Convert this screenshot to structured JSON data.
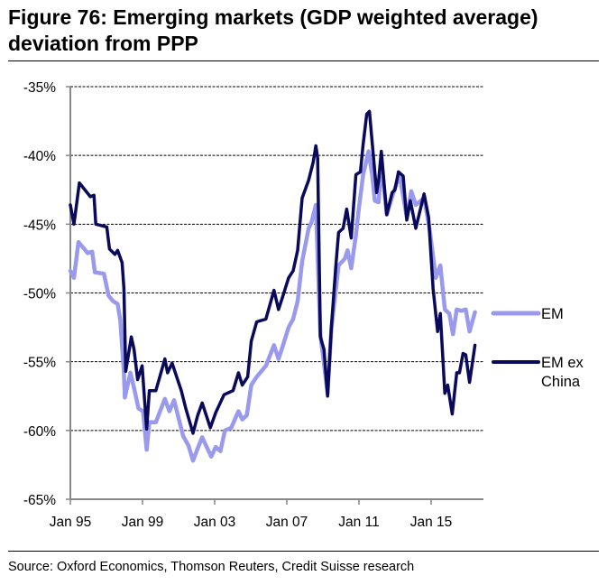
{
  "title": "Figure 76: Emerging markets (GDP weighted average) deviation from PPP",
  "source": "Source: Oxford Economics, Thomson Reuters, Credit Suisse research",
  "chart_data": {
    "type": "line",
    "title": "Figure 76: Emerging markets (GDP weighted average) deviation from PPP",
    "xlabel": "",
    "ylabel": "",
    "x_unit": "year (decimal)",
    "xlim": [
      1995,
      2017.9
    ],
    "ylim": [
      -65,
      -35
    ],
    "y_ticks": [
      -35,
      -40,
      -45,
      -50,
      -55,
      -60,
      -65
    ],
    "y_tick_labels": [
      "-35%",
      "-40%",
      "-45%",
      "-50%",
      "-55%",
      "-60%",
      "-65%"
    ],
    "x_ticks": [
      1995,
      1999,
      2003,
      2007,
      2011,
      2015
    ],
    "x_tick_labels": [
      "Jan 95",
      "Jan 99",
      "Jan 03",
      "Jan 07",
      "Jan 11",
      "Jan 15"
    ],
    "grid": "horizontal dashed",
    "legend_placement": "right",
    "series": [
      {
        "name": "EM",
        "color": "#9999ee",
        "x": [
          1995.0,
          1995.2,
          1995.45,
          1995.96,
          1996.21,
          1996.36,
          1996.86,
          1997.12,
          1997.37,
          1997.62,
          1997.77,
          1997.97,
          1998.02,
          1998.33,
          1998.53,
          1998.78,
          1999.03,
          1999.23,
          1999.38,
          1999.74,
          2000.24,
          2000.49,
          2000.75,
          2001.25,
          2001.55,
          2001.8,
          2002.06,
          2002.31,
          2002.81,
          2003.06,
          2003.32,
          2003.57,
          2003.92,
          2004.32,
          2004.53,
          2004.78,
          2005.03,
          2005.33,
          2005.84,
          2006.29,
          2006.54,
          2006.79,
          2007.1,
          2007.35,
          2007.6,
          2007.85,
          2008.21,
          2008.36,
          2008.61,
          2008.86,
          2009.26,
          2009.47,
          2009.87,
          2010.22,
          2010.37,
          2010.57,
          2010.83,
          2010.98,
          2011.23,
          2011.53,
          2011.73,
          2011.88,
          2012.09,
          2012.24,
          2012.54,
          2012.84,
          2013.25,
          2013.65,
          2013.9,
          2014.15,
          2014.61,
          2014.91,
          2015.26,
          2015.51,
          2015.76,
          2016.01,
          2016.21,
          2016.42,
          2016.67,
          2016.92,
          2017.13,
          2017.43
        ],
        "y": [
          -48.4,
          -48.9,
          -46.3,
          -47.1,
          -47.0,
          -48.5,
          -48.6,
          -50.2,
          -50.6,
          -50.8,
          -52.0,
          -55.8,
          -57.6,
          -55.8,
          -56.9,
          -58.4,
          -58.6,
          -61.4,
          -59.4,
          -59.4,
          -57.7,
          -58.6,
          -57.8,
          -60.4,
          -61.1,
          -62.2,
          -61.3,
          -60.5,
          -61.9,
          -61.2,
          -61.5,
          -60.0,
          -59.8,
          -58.6,
          -59.2,
          -58.9,
          -56.7,
          -56.1,
          -55.3,
          -53.8,
          -54.8,
          -53.8,
          -52.5,
          -51.9,
          -50.6,
          -47.7,
          -45.3,
          -44.9,
          -43.6,
          -53.0,
          -57.3,
          -52.6,
          -48.0,
          -47.5,
          -46.9,
          -48.2,
          -45.8,
          -44.0,
          -41.4,
          -39.7,
          -41.4,
          -43.3,
          -43.4,
          -40.5,
          -44.3,
          -43.0,
          -41.4,
          -44.5,
          -42.6,
          -43.6,
          -43.1,
          -45.3,
          -48.9,
          -48.0,
          -51.2,
          -51.5,
          -53.0,
          -51.2,
          -51.3,
          -51.2,
          -52.8,
          -51.4
        ]
      },
      {
        "name": "EM ex China",
        "color": "#0a0a5c",
        "x": [
          1995.0,
          1995.2,
          1995.5,
          1996.11,
          1996.31,
          1996.41,
          1997.02,
          1997.17,
          1997.47,
          1997.62,
          1997.87,
          1997.97,
          1998.07,
          1998.38,
          1998.53,
          1998.73,
          1998.98,
          1999.23,
          1999.38,
          1999.74,
          2000.24,
          2000.39,
          2000.64,
          2001.15,
          2001.4,
          2001.8,
          2002.06,
          2002.31,
          2002.76,
          2003.06,
          2003.52,
          2004.02,
          2004.32,
          2004.53,
          2004.83,
          2005.03,
          2005.33,
          2005.84,
          2006.29,
          2006.54,
          2006.79,
          2007.1,
          2007.35,
          2007.6,
          2007.85,
          2008.21,
          2008.46,
          2008.61,
          2008.71,
          2008.86,
          2009.06,
          2009.26,
          2009.47,
          2009.72,
          2009.87,
          2010.12,
          2010.32,
          2010.57,
          2010.83,
          2011.08,
          2011.23,
          2011.43,
          2011.58,
          2011.83,
          2011.98,
          2012.09,
          2012.24,
          2012.54,
          2012.84,
          2012.99,
          2013.19,
          2013.45,
          2013.65,
          2013.85,
          2014.15,
          2014.61,
          2014.86,
          2015.11,
          2015.36,
          2015.51,
          2015.76,
          2015.92,
          2016.17,
          2016.42,
          2016.57,
          2016.77,
          2016.92,
          2017.13,
          2017.43
        ],
        "y": [
          -43.6,
          -45.0,
          -42.0,
          -43.0,
          -42.9,
          -45.0,
          -45.2,
          -46.8,
          -47.2,
          -46.9,
          -47.8,
          -49.7,
          -55.7,
          -53.2,
          -54.1,
          -56.3,
          -55.3,
          -59.9,
          -57.1,
          -57.1,
          -54.8,
          -55.8,
          -55.1,
          -57.1,
          -58.4,
          -60.2,
          -58.9,
          -58.0,
          -59.8,
          -58.7,
          -57.4,
          -57.1,
          -55.8,
          -56.7,
          -56.1,
          -53.5,
          -52.1,
          -51.9,
          -49.8,
          -51.2,
          -50.2,
          -48.9,
          -48.4,
          -46.9,
          -43.1,
          -41.8,
          -40.5,
          -39.3,
          -40.2,
          -53.2,
          -54.1,
          -57.5,
          -52.5,
          -48.0,
          -45.6,
          -45.3,
          -43.9,
          -46.0,
          -41.4,
          -41.2,
          -39.2,
          -37.0,
          -36.8,
          -40.5,
          -42.7,
          -41.8,
          -39.7,
          -44.3,
          -42.7,
          -42.5,
          -41.2,
          -41.5,
          -44.7,
          -43.3,
          -45.3,
          -42.8,
          -44.5,
          -49.7,
          -52.8,
          -51.5,
          -57.3,
          -56.7,
          -58.8,
          -55.8,
          -55.8,
          -54.4,
          -54.5,
          -56.5,
          -53.8
        ]
      }
    ]
  }
}
